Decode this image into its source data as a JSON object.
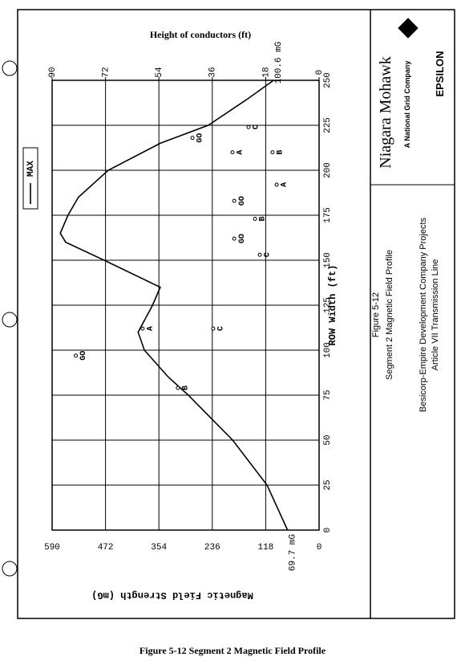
{
  "chart_data": {
    "type": "line",
    "x_label": "ROW Width (ft)",
    "y_label": "Magnetic Field Strength (mG)",
    "y2_label": "Height of conductors (ft)",
    "x": [
      0,
      25,
      50,
      75,
      85,
      100,
      110,
      125,
      135,
      150,
      160,
      165,
      175,
      185,
      200,
      215,
      225,
      240,
      250
    ],
    "series": [
      {
        "name": "MAX",
        "color": "#000000",
        "values": [
          69.7,
          115,
          191,
          289,
          333,
          386,
          400,
          368,
          351,
          475,
          560,
          572,
          555,
          532,
          466,
          351,
          245,
          156,
          100.6
        ],
        "value_labels": [
          "69.7 mG",
          null,
          null,
          null,
          null,
          null,
          null,
          null,
          null,
          null,
          null,
          null,
          null,
          null,
          null,
          null,
          null,
          null,
          "100.6 mG"
        ]
      }
    ],
    "conductors": {
      "axis": "y2",
      "labels": [
        "GO",
        "A",
        "B",
        "C",
        "GO",
        "C",
        "GO",
        "B",
        "A",
        "GO",
        "A",
        "B",
        "C"
      ],
      "x": [
        97,
        112,
        79,
        112,
        162,
        153,
        183,
        173,
        192,
        218,
        210,
        210,
        224
      ],
      "values": [
        82,
        59.5,
        47.6,
        35.7,
        28.6,
        20,
        28.6,
        21.6,
        14.3,
        42.7,
        29.2,
        15.7,
        23.8
      ]
    },
    "xlim": [
      0,
      250
    ],
    "xticks": [
      0,
      25,
      50,
      75,
      100,
      125,
      150,
      175,
      200,
      225,
      250
    ],
    "ylim": [
      0,
      590
    ],
    "yticks": [
      0,
      118,
      236,
      354,
      472,
      590
    ],
    "y2lim": [
      0,
      90
    ],
    "y2ticks": [
      0,
      18,
      36,
      54,
      72,
      90
    ],
    "grid": true,
    "legend": "top-left"
  },
  "panel": {
    "company": "Niagara Mohawk",
    "company_sub": "A National Grid Company",
    "consultant": "EPSILON",
    "figure_number": "Figure 5-12",
    "figure_title": "Segment 2 Magnetic Field Profile",
    "project": "Besicorp-Empire Development Company Projects",
    "project_sub": "Article VII Transmission Line"
  },
  "caption": "Figure 5-12 Segment 2 Magnetic Field Profile"
}
